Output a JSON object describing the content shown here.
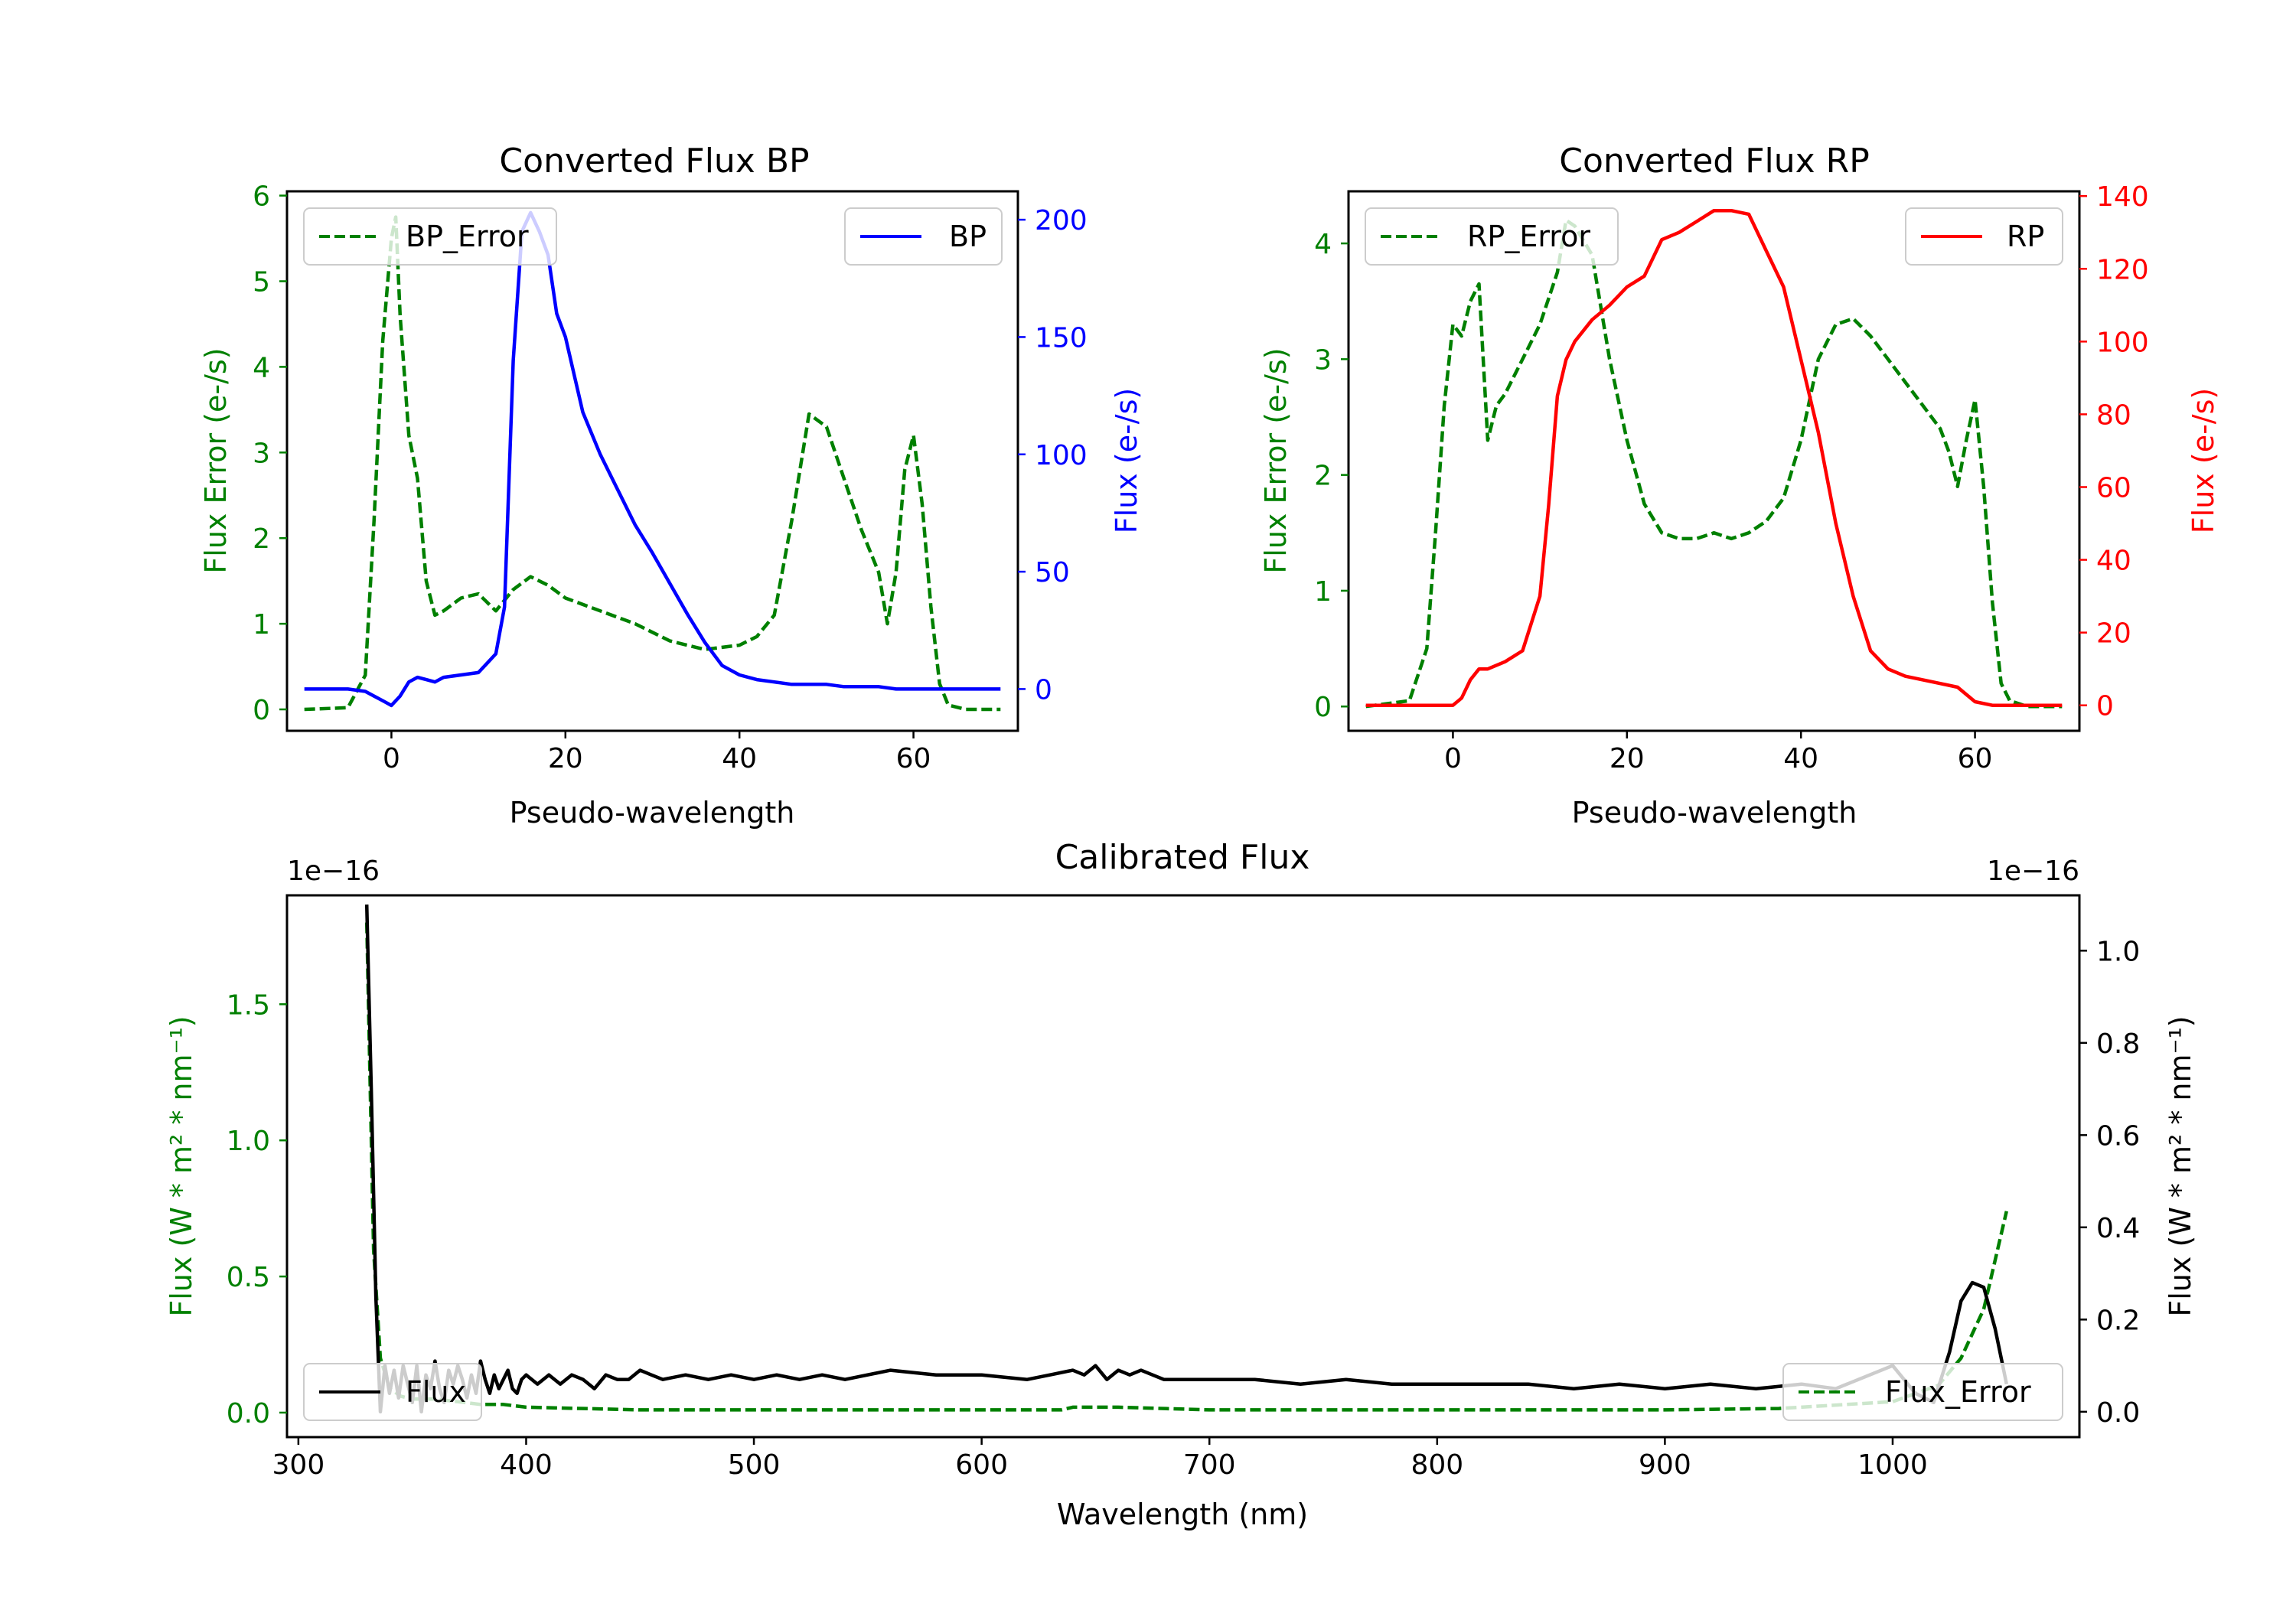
{
  "chart_data": [
    {
      "type": "line",
      "title": "Converted Flux BP",
      "xlabel": "Pseudo-wavelength",
      "xlim": [
        -12,
        72
      ],
      "xticks": [
        0,
        20,
        40,
        60
      ],
      "y_left": {
        "label": "Flux Error (e-/s)",
        "lim": [
          -0.25,
          6.05
        ],
        "ticks": [
          0,
          1,
          2,
          3,
          4,
          5,
          6
        ],
        "color": "#008000"
      },
      "y_right": {
        "label": "Flux (e-/s)",
        "lim": [
          -17.8,
          212.1
        ],
        "ticks": [
          0,
          50,
          100,
          150,
          200
        ],
        "color": "#0000ff"
      },
      "series": [
        {
          "name": "BP_Error",
          "axis": "left",
          "color": "#008000",
          "dash": true,
          "x": [
            -10,
            -5,
            -3,
            -2,
            -1,
            0,
            0.5,
            1,
            2,
            3,
            4,
            5,
            6,
            8,
            10,
            12,
            14,
            16,
            18,
            20,
            24,
            28,
            32,
            36,
            40,
            42,
            44,
            46,
            48,
            50,
            52,
            54,
            56,
            57,
            58,
            59,
            60,
            61,
            62,
            63,
            64,
            66,
            70
          ],
          "values": [
            0,
            0.02,
            0.4,
            2.2,
            4.3,
            5.5,
            5.75,
            4.6,
            3.2,
            2.7,
            1.5,
            1.1,
            1.15,
            1.3,
            1.35,
            1.15,
            1.4,
            1.55,
            1.45,
            1.3,
            1.15,
            1.0,
            0.8,
            0.7,
            0.75,
            0.85,
            1.1,
            2.2,
            3.45,
            3.3,
            2.7,
            2.1,
            1.6,
            1.0,
            1.6,
            2.8,
            3.2,
            2.4,
            1.2,
            0.3,
            0.05,
            0,
            0
          ]
        },
        {
          "name": "BP",
          "axis": "right",
          "color": "#0000ff",
          "dash": false,
          "x": [
            -10,
            -5,
            -3,
            -2,
            -1,
            0,
            1,
            2,
            3,
            4,
            5,
            6,
            8,
            10,
            12,
            13,
            14,
            15,
            16,
            17,
            18,
            19,
            20,
            22,
            24,
            26,
            28,
            30,
            32,
            34,
            36,
            38,
            40,
            42,
            44,
            46,
            48,
            50,
            52,
            54,
            56,
            58,
            60,
            62,
            64,
            66,
            70
          ],
          "values": [
            0,
            0,
            -1,
            -3,
            -5,
            -7,
            -3,
            3,
            5,
            4,
            3,
            5,
            6,
            7,
            15,
            35,
            140,
            195,
            203,
            195,
            185,
            160,
            150,
            118,
            100,
            85,
            70,
            58,
            45,
            32,
            20,
            10,
            6,
            4,
            3,
            2,
            2,
            2,
            1,
            1,
            1,
            0,
            0,
            0,
            0,
            0,
            0
          ]
        }
      ],
      "legend_left": {
        "label": "BP_Error",
        "position": "upper left"
      },
      "legend_right": {
        "label": "BP",
        "position": "upper right"
      }
    },
    {
      "type": "line",
      "title": "Converted Flux RP",
      "xlabel": "Pseudo-wavelength",
      "xlim": [
        -12,
        72
      ],
      "xticks": [
        0,
        20,
        40,
        60
      ],
      "y_left": {
        "label": "Flux Error (e-/s)",
        "lim": [
          -0.21,
          4.45
        ],
        "ticks": [
          0,
          1,
          2,
          3,
          4
        ],
        "color": "#008000"
      },
      "y_right": {
        "label": "Flux (e-/s)",
        "lim": [
          -7,
          141.3
        ],
        "ticks": [
          0,
          20,
          40,
          60,
          80,
          100,
          120,
          140
        ],
        "color": "#ff0000"
      },
      "series": [
        {
          "name": "RP_Error",
          "axis": "left",
          "color": "#008000",
          "dash": true,
          "x": [
            -10,
            -5,
            -3,
            -2,
            -1,
            0,
            1,
            2,
            3,
            4,
            5,
            6,
            8,
            10,
            12,
            13,
            14,
            16,
            18,
            20,
            22,
            24,
            26,
            28,
            30,
            32,
            34,
            36,
            38,
            40,
            42,
            44,
            46,
            48,
            50,
            52,
            54,
            56,
            57,
            58,
            59,
            60,
            61,
            62,
            63,
            64,
            66,
            70
          ],
          "values": [
            0,
            0.05,
            0.5,
            1.5,
            2.6,
            3.3,
            3.2,
            3.5,
            3.65,
            2.3,
            2.6,
            2.7,
            3.0,
            3.3,
            3.75,
            4.2,
            4.15,
            3.9,
            3.0,
            2.3,
            1.75,
            1.5,
            1.45,
            1.45,
            1.5,
            1.45,
            1.5,
            1.6,
            1.8,
            2.3,
            3.0,
            3.3,
            3.35,
            3.2,
            3.0,
            2.8,
            2.6,
            2.4,
            2.2,
            1.9,
            2.3,
            2.65,
            1.9,
            0.9,
            0.2,
            0.05,
            0,
            0
          ]
        },
        {
          "name": "RP",
          "axis": "right",
          "color": "#ff0000",
          "dash": false,
          "x": [
            -10,
            -5,
            -2,
            0,
            1,
            2,
            3,
            4,
            6,
            8,
            10,
            11,
            12,
            13,
            14,
            16,
            18,
            20,
            22,
            24,
            26,
            28,
            30,
            32,
            34,
            36,
            38,
            40,
            42,
            44,
            46,
            48,
            50,
            52,
            54,
            56,
            58,
            60,
            62,
            66,
            70
          ],
          "values": [
            0,
            0,
            0,
            0,
            2,
            7,
            10,
            10,
            12,
            15,
            30,
            55,
            85,
            95,
            100,
            106,
            110,
            115,
            118,
            128,
            130,
            133,
            136,
            136,
            135,
            125,
            115,
            95,
            75,
            50,
            30,
            15,
            10,
            8,
            7,
            6,
            5,
            1,
            0,
            0,
            0
          ]
        }
      ],
      "legend_left": {
        "label": "RP_Error",
        "position": "upper left"
      },
      "legend_right": {
        "label": "RP",
        "position": "upper right"
      }
    },
    {
      "type": "line",
      "title": "Calibrated Flux",
      "xlabel": "Wavelength (nm)",
      "xlim": [
        295,
        1082
      ],
      "xticks": [
        300,
        400,
        500,
        600,
        700,
        800,
        900,
        1000
      ],
      "y_left": {
        "label": "Flux (W * m² * nm⁻¹)",
        "lim": [
          -0.09,
          1.9
        ],
        "ticks": [
          0.0,
          0.5,
          1.0,
          1.5
        ],
        "tick_labels": [
          "0.0",
          "0.5",
          "1.0",
          "1.5"
        ],
        "offset_text": "1e−16",
        "color": "#008000"
      },
      "y_right": {
        "label": "Flux (W * m² * nm⁻¹)",
        "lim": [
          -0.055,
          1.12
        ],
        "ticks": [
          0.0,
          0.2,
          0.4,
          0.6,
          0.8,
          1.0
        ],
        "tick_labels": [
          "0.0",
          "0.2",
          "0.4",
          "0.6",
          "0.8",
          "1.0"
        ],
        "offset_text": "1e−16",
        "color": "#000000"
      },
      "series": [
        {
          "name": "Flux_Error",
          "axis": "left",
          "color": "#008000",
          "dash": true,
          "x": [
            330,
            333,
            336,
            340,
            345,
            350,
            360,
            370,
            380,
            390,
            400,
            450,
            500,
            550,
            600,
            635,
            640,
            660,
            700,
            800,
            900,
            950,
            1000,
            1020,
            1030,
            1040,
            1050
          ],
          "values": [
            1.8,
            0.6,
            0.2,
            0.09,
            0.06,
            0.05,
            0.05,
            0.04,
            0.03,
            0.03,
            0.02,
            0.01,
            0.01,
            0.01,
            0.01,
            0.01,
            0.02,
            0.02,
            0.01,
            0.01,
            0.01,
            0.015,
            0.04,
            0.1,
            0.2,
            0.38,
            0.74
          ]
        },
        {
          "name": "Flux",
          "axis": "right",
          "color": "#000000",
          "dash": false,
          "x": [
            330,
            332,
            334,
            336,
            338,
            340,
            342,
            344,
            346,
            348,
            350,
            352,
            354,
            356,
            358,
            360,
            362,
            364,
            366,
            368,
            370,
            372,
            374,
            376,
            378,
            380,
            382,
            384,
            386,
            388,
            390,
            392,
            394,
            396,
            398,
            400,
            405,
            410,
            415,
            420,
            425,
            430,
            435,
            440,
            445,
            450,
            455,
            460,
            470,
            480,
            490,
            500,
            510,
            520,
            530,
            540,
            560,
            580,
            600,
            620,
            630,
            640,
            645,
            650,
            655,
            660,
            665,
            670,
            680,
            700,
            720,
            740,
            760,
            780,
            800,
            820,
            840,
            860,
            880,
            900,
            920,
            940,
            960,
            975,
            985,
            1000,
            1010,
            1018,
            1025,
            1030,
            1035,
            1040,
            1045,
            1050
          ],
          "values": [
            1.1,
            0.7,
            0.25,
            0.0,
            0.1,
            0.04,
            0.09,
            0.03,
            0.1,
            0.06,
            0.02,
            0.1,
            0.0,
            0.08,
            0.05,
            0.11,
            0.05,
            0.02,
            0.09,
            0.06,
            0.1,
            0.07,
            0.03,
            0.08,
            0.04,
            0.11,
            0.07,
            0.04,
            0.08,
            0.05,
            0.07,
            0.09,
            0.05,
            0.04,
            0.07,
            0.08,
            0.06,
            0.08,
            0.06,
            0.08,
            0.07,
            0.05,
            0.08,
            0.07,
            0.07,
            0.09,
            0.08,
            0.07,
            0.08,
            0.07,
            0.08,
            0.07,
            0.08,
            0.07,
            0.08,
            0.07,
            0.09,
            0.08,
            0.08,
            0.07,
            0.08,
            0.09,
            0.08,
            0.1,
            0.07,
            0.09,
            0.08,
            0.09,
            0.07,
            0.07,
            0.07,
            0.06,
            0.07,
            0.06,
            0.06,
            0.06,
            0.06,
            0.05,
            0.06,
            0.05,
            0.06,
            0.05,
            0.06,
            0.05,
            0.07,
            0.1,
            0.04,
            0.02,
            0.13,
            0.24,
            0.28,
            0.27,
            0.18,
            0.06
          ]
        }
      ],
      "legend_left": {
        "label": "Flux",
        "position": "lower left"
      },
      "legend_right": {
        "label": "Flux_Error",
        "position": "lower right"
      }
    }
  ]
}
